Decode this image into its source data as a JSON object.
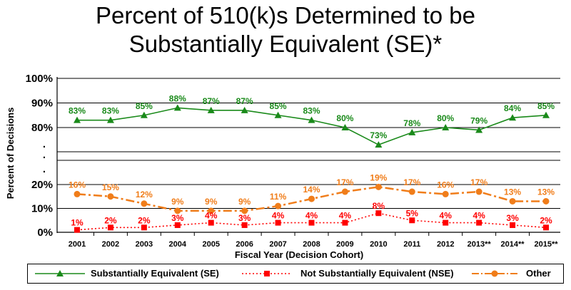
{
  "title_line1": "Percent of 510(k)s Determined to be",
  "title_line2": "Substantially Equivalent (SE)*",
  "chart_data": {
    "type": "line",
    "title": "Percent of 510(k)s Determined to be Substantially Equivalent (SE)*",
    "xlabel": "Fiscal Year (Decision Cohort)",
    "ylabel": "Percent of Decisions",
    "categories": [
      "2001",
      "2002",
      "2003",
      "2004",
      "2005",
      "2006",
      "2007",
      "2008",
      "2009",
      "2010",
      "2011",
      "2012",
      "2013**",
      "2014**",
      "2015**"
    ],
    "yticks_upper": [
      "80%",
      "90%",
      "100%"
    ],
    "yticks_lower": [
      "0%",
      "10%",
      "20%"
    ],
    "axis_break_dots": [
      ".",
      ".",
      "."
    ],
    "y_axis": "broken axis: 0%–20% and 80%–100%",
    "grid": true,
    "legend_position": "bottom",
    "series": [
      {
        "name": "Substantially Equivalent (SE)",
        "color": "#1a8a1a",
        "marker": "triangle",
        "line_style": "solid",
        "values": [
          83,
          83,
          85,
          88,
          87,
          87,
          85,
          83,
          80,
          73,
          78,
          80,
          79,
          84,
          85
        ],
        "labels": [
          "83%",
          "83%",
          "85%",
          "88%",
          "87%",
          "87%",
          "85%",
          "83%",
          "80%",
          "73%",
          "78%",
          "80%",
          "79%",
          "84%",
          "85%"
        ]
      },
      {
        "name": "Not Substantially Equivalent (NSE)",
        "color": "#ff0000",
        "marker": "square",
        "line_style": "dotted",
        "values": [
          1,
          2,
          2,
          3,
          4,
          3,
          4,
          4,
          4,
          8,
          5,
          4,
          4,
          3,
          2
        ],
        "labels": [
          "1%",
          "2%",
          "2%",
          "3%",
          "4%",
          "3%",
          "4%",
          "4%",
          "4%",
          "8%",
          "5%",
          "4%",
          "4%",
          "3%",
          "2%"
        ]
      },
      {
        "name": "Other",
        "color": "#f07d1a",
        "marker": "circle",
        "line_style": "dash-dot",
        "values": [
          16,
          15,
          12,
          9,
          9,
          9,
          11,
          14,
          17,
          19,
          17,
          16,
          17,
          13,
          13
        ],
        "labels": [
          "16%",
          "15%",
          "12%",
          "9%",
          "9%",
          "9%",
          "11%",
          "14%",
          "17%",
          "19%",
          "17%",
          "16%",
          "17%",
          "13%",
          "13%"
        ]
      }
    ]
  }
}
